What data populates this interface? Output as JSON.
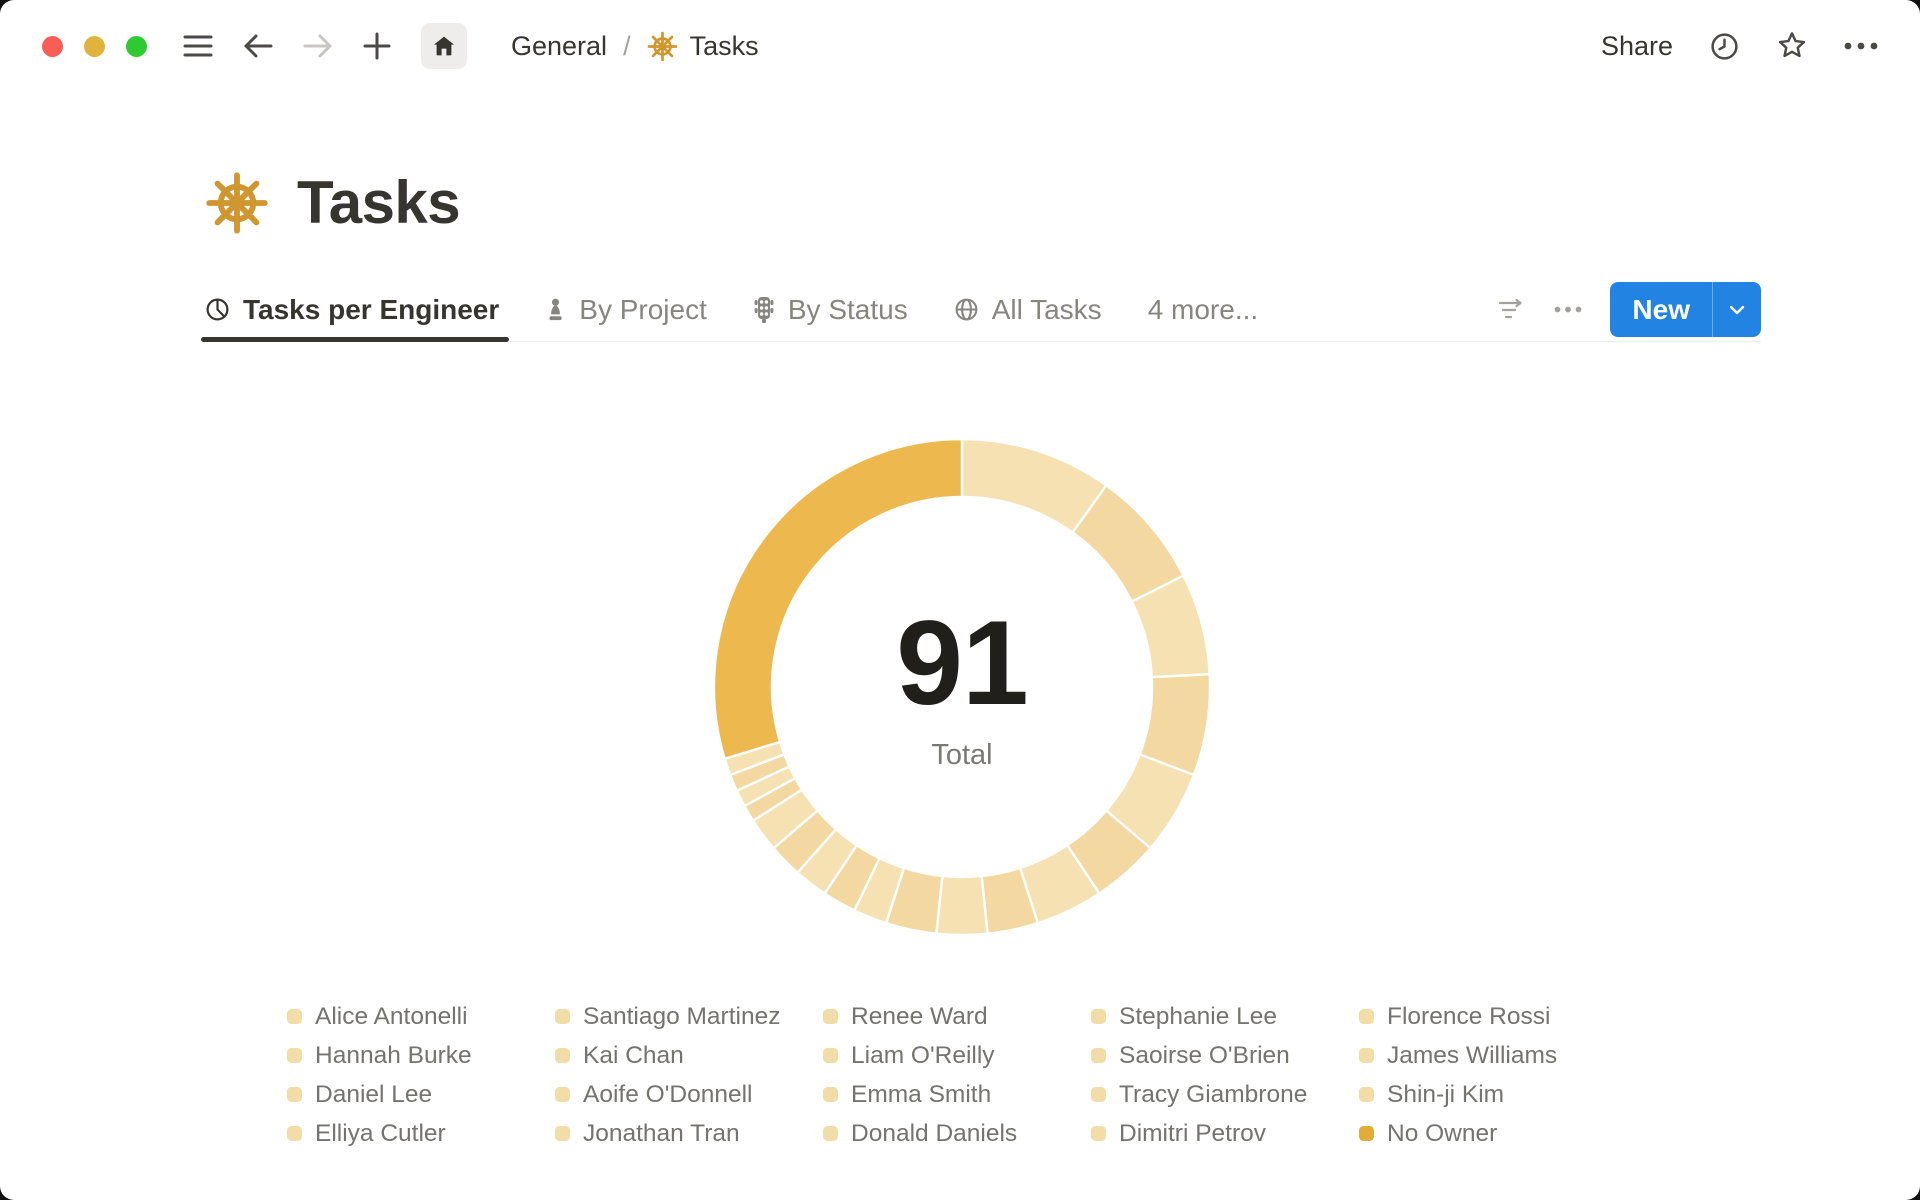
{
  "window": {
    "breadcrumb": {
      "root": "General",
      "separator": "/",
      "page": "Tasks"
    },
    "share_label": "Share"
  },
  "page": {
    "title": "Tasks",
    "icon": "helm-wheel"
  },
  "view_tabs": [
    {
      "label": "Tasks per Engineer",
      "icon": "pie-chart",
      "active": true
    },
    {
      "label": "By Project",
      "icon": "project-piece",
      "active": false
    },
    {
      "label": "By Status",
      "icon": "traffic-light",
      "active": false
    },
    {
      "label": "All Tasks",
      "icon": "globe",
      "active": false
    },
    {
      "label": "4 more...",
      "icon": null,
      "active": false
    }
  ],
  "toolbar": {
    "new_label": "New"
  },
  "chart_data": {
    "type": "pie",
    "subtype": "donut",
    "center_value": "91",
    "center_label": "Total",
    "total": 91,
    "legend_position": "bottom",
    "legend_columns": 5,
    "start_angle_deg": 0,
    "clockwise": true,
    "categories": [
      "Alice Antonelli",
      "Santiago Martinez",
      "Renee Ward",
      "Stephanie Lee",
      "Florence Rossi",
      "Hannah Burke",
      "Kai Chan",
      "Liam O'Reilly",
      "Saoirse O'Brien",
      "James Williams",
      "Daniel Lee",
      "Aoife O'Donnell",
      "Emma Smith",
      "Tracy Giambrone",
      "Shin-ji Kim",
      "Elliya Cutler",
      "Jonathan Tran",
      "Donald Daniels",
      "Dimitri Petrov",
      "No Owner"
    ],
    "values": [
      9,
      7,
      6,
      6,
      5,
      4,
      4,
      3,
      3,
      3,
      2,
      2,
      2,
      2,
      2,
      1,
      1,
      1,
      1,
      27
    ],
    "highlight_category": "No Owner",
    "colors": {
      "slice_light_a": "#f6e1b2",
      "slice_light_b": "#f3d9a1",
      "slice_highlight": "#edb94f",
      "legend_swatch_light": "#f2dca8",
      "legend_swatch_highlight": "#e3ab38",
      "accent_blue": "#2383e2"
    }
  }
}
